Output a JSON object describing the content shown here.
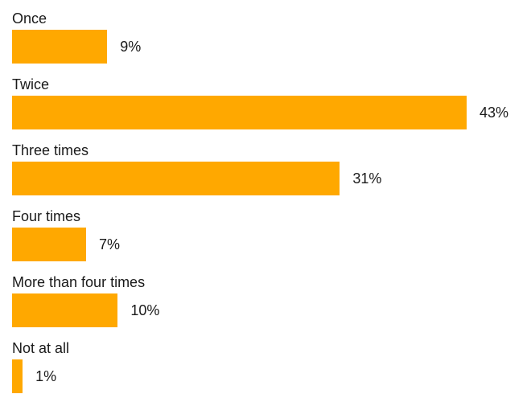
{
  "chart_data": {
    "type": "bar",
    "orientation": "horizontal",
    "categories": [
      "Once",
      "Twice",
      "Three times",
      "Four times",
      "More than four times",
      "Not at all"
    ],
    "values": [
      9,
      43,
      31,
      7,
      10,
      1
    ],
    "value_labels": [
      "9%",
      "43%",
      "31%",
      "7%",
      "10%",
      "1%"
    ],
    "unit": "%",
    "title": "",
    "xlabel": "",
    "ylabel": "",
    "xlim": [
      0,
      43
    ],
    "grid": false,
    "legend": "none",
    "bar_color": "#FFA800"
  }
}
